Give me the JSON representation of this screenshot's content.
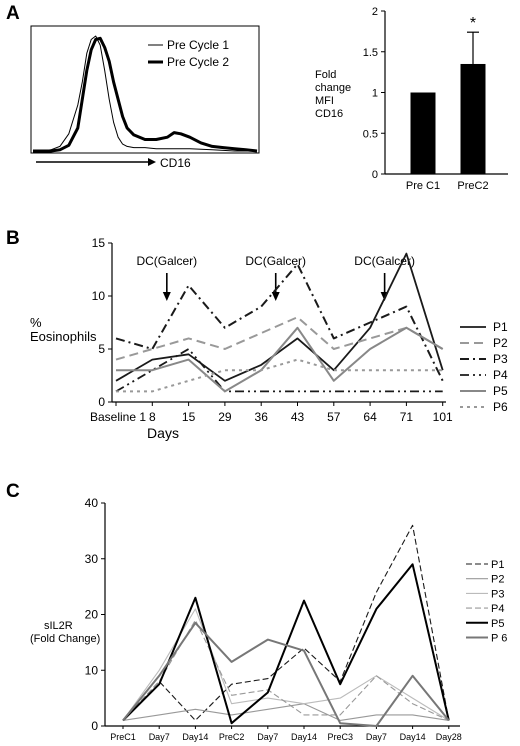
{
  "panels": {
    "a": {
      "letter": "A"
    },
    "b": {
      "letter": "B"
    },
    "c": {
      "letter": "C"
    }
  },
  "chart_data": [
    {
      "id": "histogram",
      "type": "line",
      "xlabel": "CD16",
      "series": [
        {
          "name": "Pre Cycle 1",
          "color": "#000000",
          "weight": "thin",
          "x": [
            0,
            0.04,
            0.08,
            0.12,
            0.16,
            0.2,
            0.22,
            0.24,
            0.26,
            0.28,
            0.3,
            0.32,
            0.34,
            0.36,
            0.38,
            0.4,
            0.42,
            0.45,
            0.5,
            0.55,
            0.6,
            0.7,
            0.8,
            0.9,
            1.0
          ],
          "y": [
            0,
            0,
            0.01,
            0.04,
            0.15,
            0.4,
            0.6,
            0.85,
            0.97,
            1.0,
            0.92,
            0.7,
            0.45,
            0.25,
            0.12,
            0.06,
            0.04,
            0.03,
            0.03,
            0.02,
            0.02,
            0.02,
            0.01,
            0.0,
            0.0
          ]
        },
        {
          "name": "Pre Cycle 2",
          "color": "#000000",
          "weight": "thick",
          "x": [
            0,
            0.04,
            0.08,
            0.12,
            0.16,
            0.2,
            0.22,
            0.24,
            0.26,
            0.28,
            0.3,
            0.32,
            0.34,
            0.36,
            0.38,
            0.4,
            0.42,
            0.45,
            0.5,
            0.55,
            0.6,
            0.63,
            0.66,
            0.7,
            0.75,
            0.8,
            0.85,
            0.9,
            0.95,
            1.0
          ],
          "y": [
            0,
            0,
            0,
            0.01,
            0.05,
            0.2,
            0.45,
            0.7,
            0.88,
            0.97,
            0.98,
            0.9,
            0.78,
            0.6,
            0.45,
            0.3,
            0.2,
            0.14,
            0.1,
            0.1,
            0.12,
            0.16,
            0.15,
            0.12,
            0.07,
            0.04,
            0.03,
            0.02,
            0.01,
            0.0
          ]
        }
      ]
    },
    {
      "id": "fold-change-bar",
      "type": "bar",
      "ylabel_lines": [
        "Fold",
        "change",
        "MFI",
        "CD16"
      ],
      "categories": [
        "Pre C1",
        "PreC2"
      ],
      "values": [
        1.0,
        1.35
      ],
      "errors": [
        0,
        0.39
      ],
      "ylim": [
        0,
        2
      ],
      "yticks": [
        "0",
        "0.5",
        "1",
        "1.5",
        "2"
      ],
      "annotation": "*"
    },
    {
      "id": "eosinophils",
      "type": "line",
      "ylabel_lines": [
        "%",
        "Eosinophils"
      ],
      "xlabel": "Days",
      "categories": [
        "Baseline 1",
        "8",
        "15",
        "29",
        "36",
        "43",
        "57",
        "64",
        "71",
        "101"
      ],
      "ylim": [
        0,
        15
      ],
      "yticks": [
        "0",
        "5",
        "10",
        "15"
      ],
      "annotations": [
        {
          "text": "DC(Galcer)",
          "position": 1.4
        },
        {
          "text": "DC(Galcer)",
          "position": 4.4
        },
        {
          "text": "DC(Galcer)",
          "position": 7.4
        }
      ],
      "series": [
        {
          "name": "P1",
          "color": "#1a1a1a",
          "dash": "",
          "width": 1.8,
          "values": [
            2,
            4,
            4.5,
            2,
            3.5,
            6,
            3,
            7,
            14,
            3
          ]
        },
        {
          "name": "P2",
          "color": "#999999",
          "dash": "9,5",
          "width": 2.0,
          "values": [
            4,
            5,
            6,
            5,
            6.5,
            8,
            5,
            6,
            7,
            5
          ]
        },
        {
          "name": "P3",
          "color": "#1a1a1a",
          "dash": "9,4,2,4",
          "width": 2.0,
          "values": [
            6,
            5,
            11,
            7,
            9,
            13,
            6,
            7.5,
            9,
            2
          ]
        },
        {
          "name": "P4",
          "color": "#1a1a1a",
          "dash": "9,4,2,4,2,4",
          "width": 1.8,
          "values": [
            1,
            3,
            5,
            1,
            1,
            1,
            1,
            1,
            1,
            1
          ]
        },
        {
          "name": "P5",
          "color": "#888888",
          "dash": "",
          "width": 2.0,
          "values": [
            3,
            3,
            4,
            1,
            3,
            7,
            2,
            5,
            7,
            5
          ]
        },
        {
          "name": "P6",
          "color": "#999999",
          "dash": "3,4",
          "width": 2.0,
          "values": [
            1,
            1,
            2,
            3,
            3,
            4,
            3,
            3,
            3,
            3
          ]
        }
      ]
    },
    {
      "id": "sil2r",
      "type": "line",
      "ylabel_lines": [
        "sIL2R",
        "(Fold Change)"
      ],
      "categories": [
        "PreC1",
        "Day7",
        "Day14",
        "PreC2",
        "Day7",
        "Day14",
        "PreC3",
        "Day7",
        "Day14",
        "Day28"
      ],
      "ylim": [
        0,
        40
      ],
      "yticks": [
        "0",
        "10",
        "20",
        "30",
        "40"
      ],
      "series": [
        {
          "name": "P1",
          "color": "#1a1a1a",
          "dash": "6,3",
          "width": 1.1,
          "values": [
            1,
            8,
            1,
            7.5,
            8.5,
            14,
            8,
            24,
            36,
            1
          ]
        },
        {
          "name": "P2",
          "color": "#999999",
          "dash": "",
          "width": 1.1,
          "values": [
            1,
            2,
            3,
            2,
            3,
            4,
            1,
            2,
            2,
            1
          ]
        },
        {
          "name": "P3",
          "color": "#bbbbbb",
          "dash": "",
          "width": 1.1,
          "values": [
            1,
            10,
            21,
            4,
            5,
            4,
            5,
            9,
            5,
            1
          ]
        },
        {
          "name": "P4",
          "color": "#999999",
          "dash": "6,3",
          "width": 1.1,
          "values": [
            1,
            8,
            19,
            5.5,
            6.5,
            2,
            2,
            9,
            4,
            1
          ]
        },
        {
          "name": "P5",
          "color": "#000000",
          "dash": "",
          "width": 2.0,
          "values": [
            1,
            7.5,
            23,
            0.5,
            6,
            22.5,
            7.5,
            21,
            29,
            1
          ]
        },
        {
          "name": "P 6",
          "color": "#777777",
          "dash": "",
          "width": 2.0,
          "values": [
            1,
            9,
            18.5,
            11.5,
            15.5,
            13.5,
            0.5,
            0,
            9,
            1
          ]
        }
      ]
    }
  ]
}
